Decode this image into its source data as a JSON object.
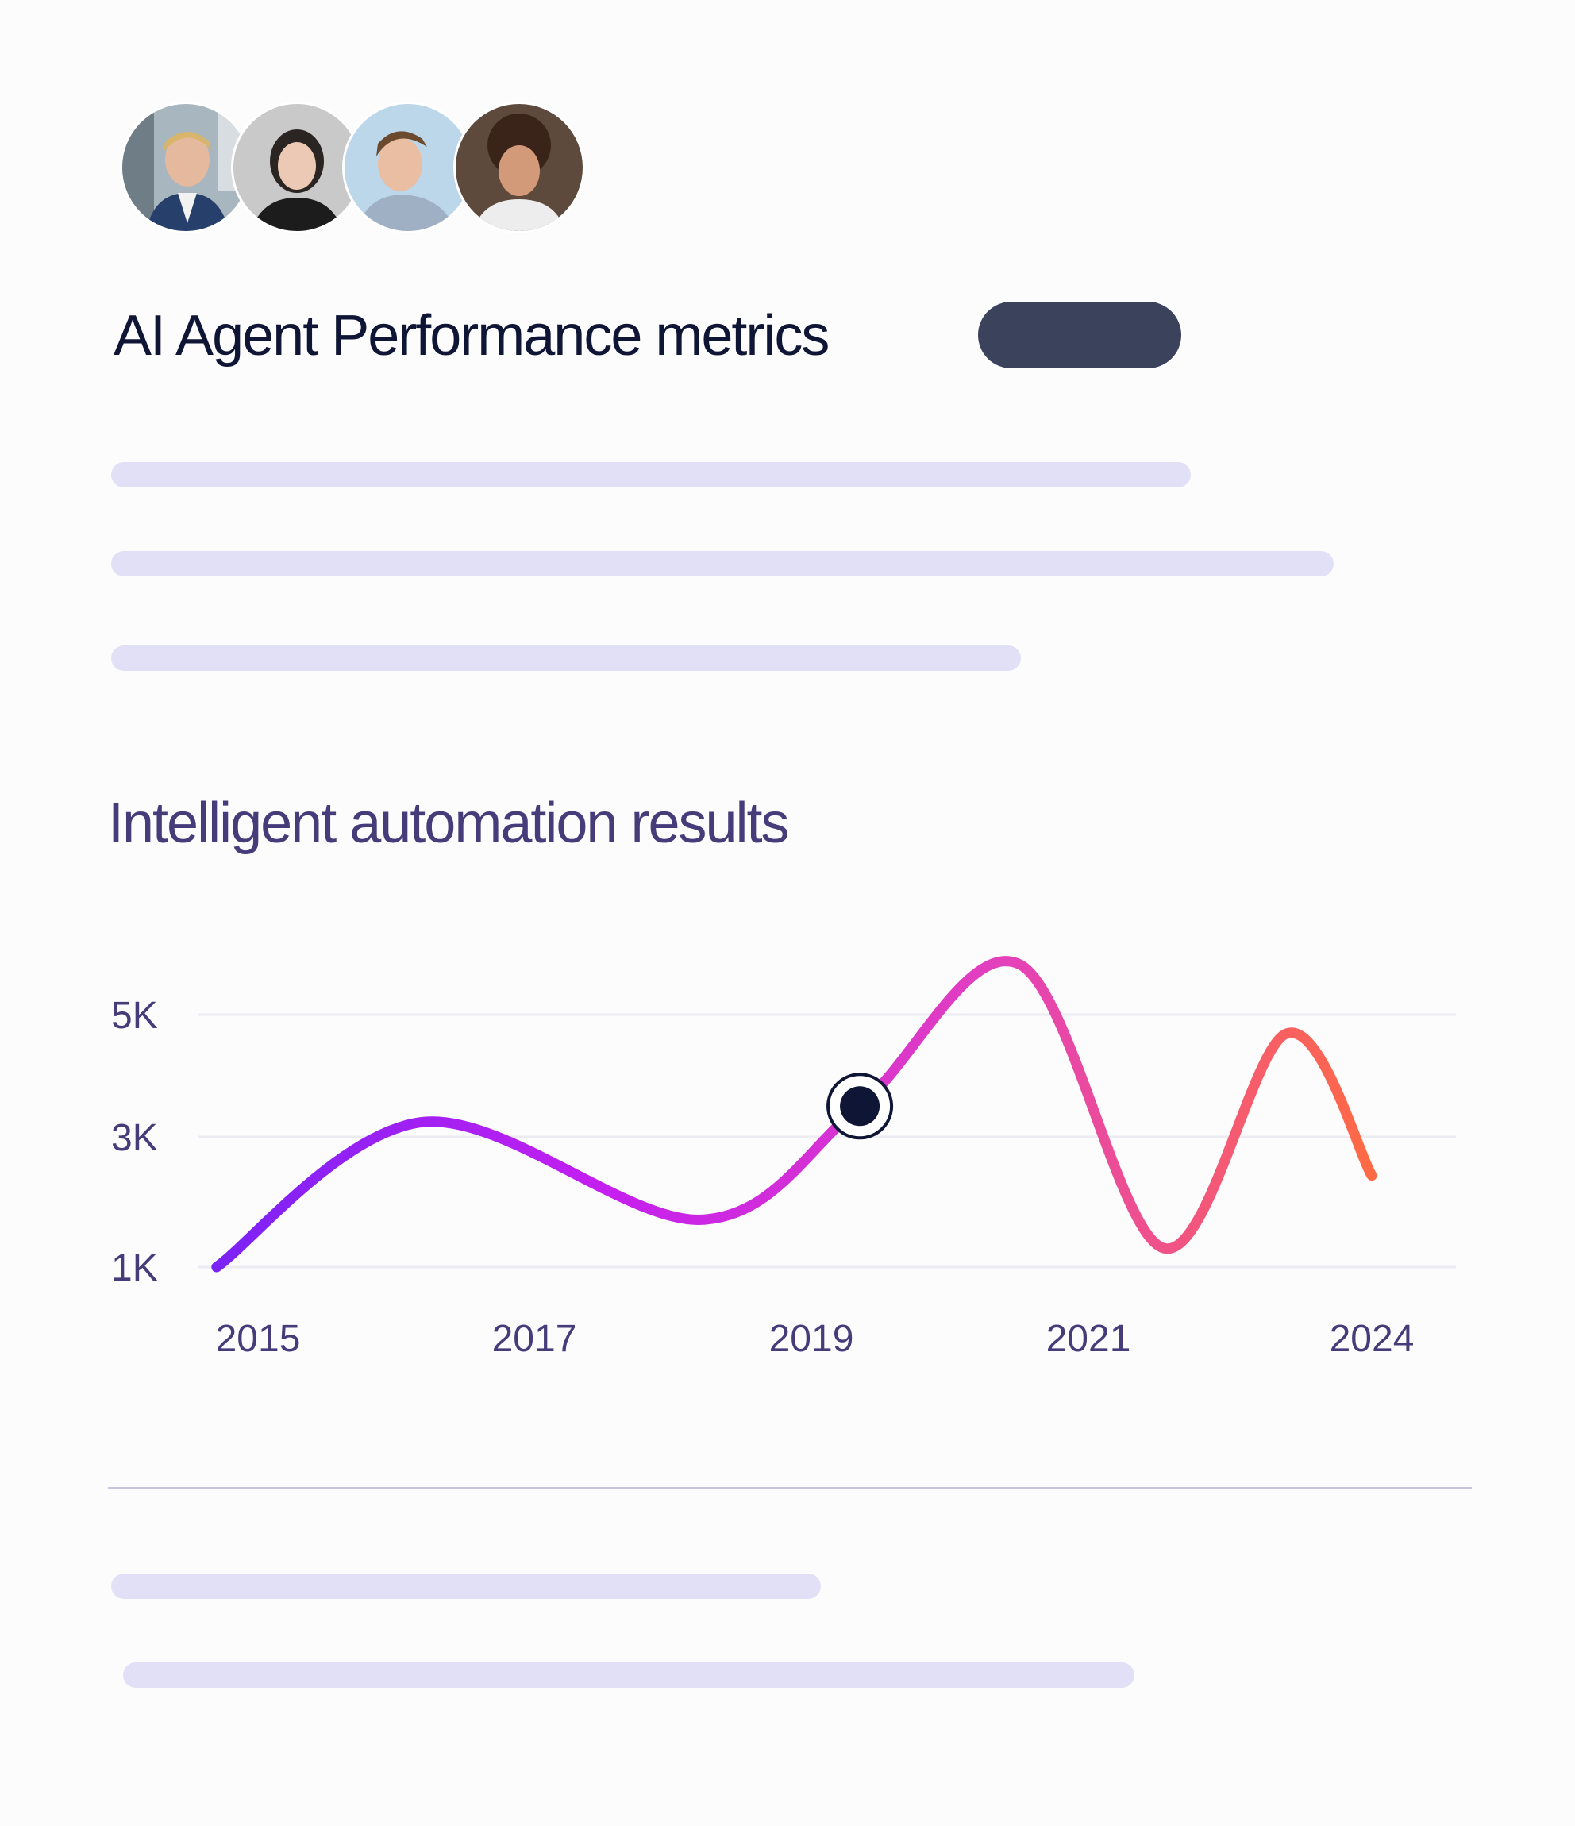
{
  "header": {
    "title": "AI Agent Performance metrics",
    "avatars": [
      "avatar-1",
      "avatar-2",
      "avatar-3",
      "avatar-4"
    ],
    "pill_color": "#3b425c"
  },
  "placeholder_color": "#e2e0f6",
  "chart_data": {
    "type": "line",
    "title": "Intelligent automation results",
    "xlabel": "",
    "ylabel": "",
    "x_ticks": [
      "2015",
      "2017",
      "2019",
      "2021",
      "2024"
    ],
    "y_ticks": [
      "5K",
      "3K",
      "1K"
    ],
    "ylim": [
      1000,
      5000
    ],
    "grid": true,
    "legend": "none",
    "series": [
      {
        "x": [
          2014.7,
          2016.2,
          2018.2,
          2019.35,
          2020.5,
          2021.8,
          2023.1,
          2024.0
        ],
        "values": [
          1000,
          3300,
          1750,
          3550,
          5800,
          1300,
          4700,
          2450
        ],
        "gradient": [
          "#7b22f5",
          "#c41ff0",
          "#e23fbf",
          "#ff6a45"
        ]
      }
    ],
    "highlight": {
      "x": 2019.35,
      "value": 3550
    }
  }
}
